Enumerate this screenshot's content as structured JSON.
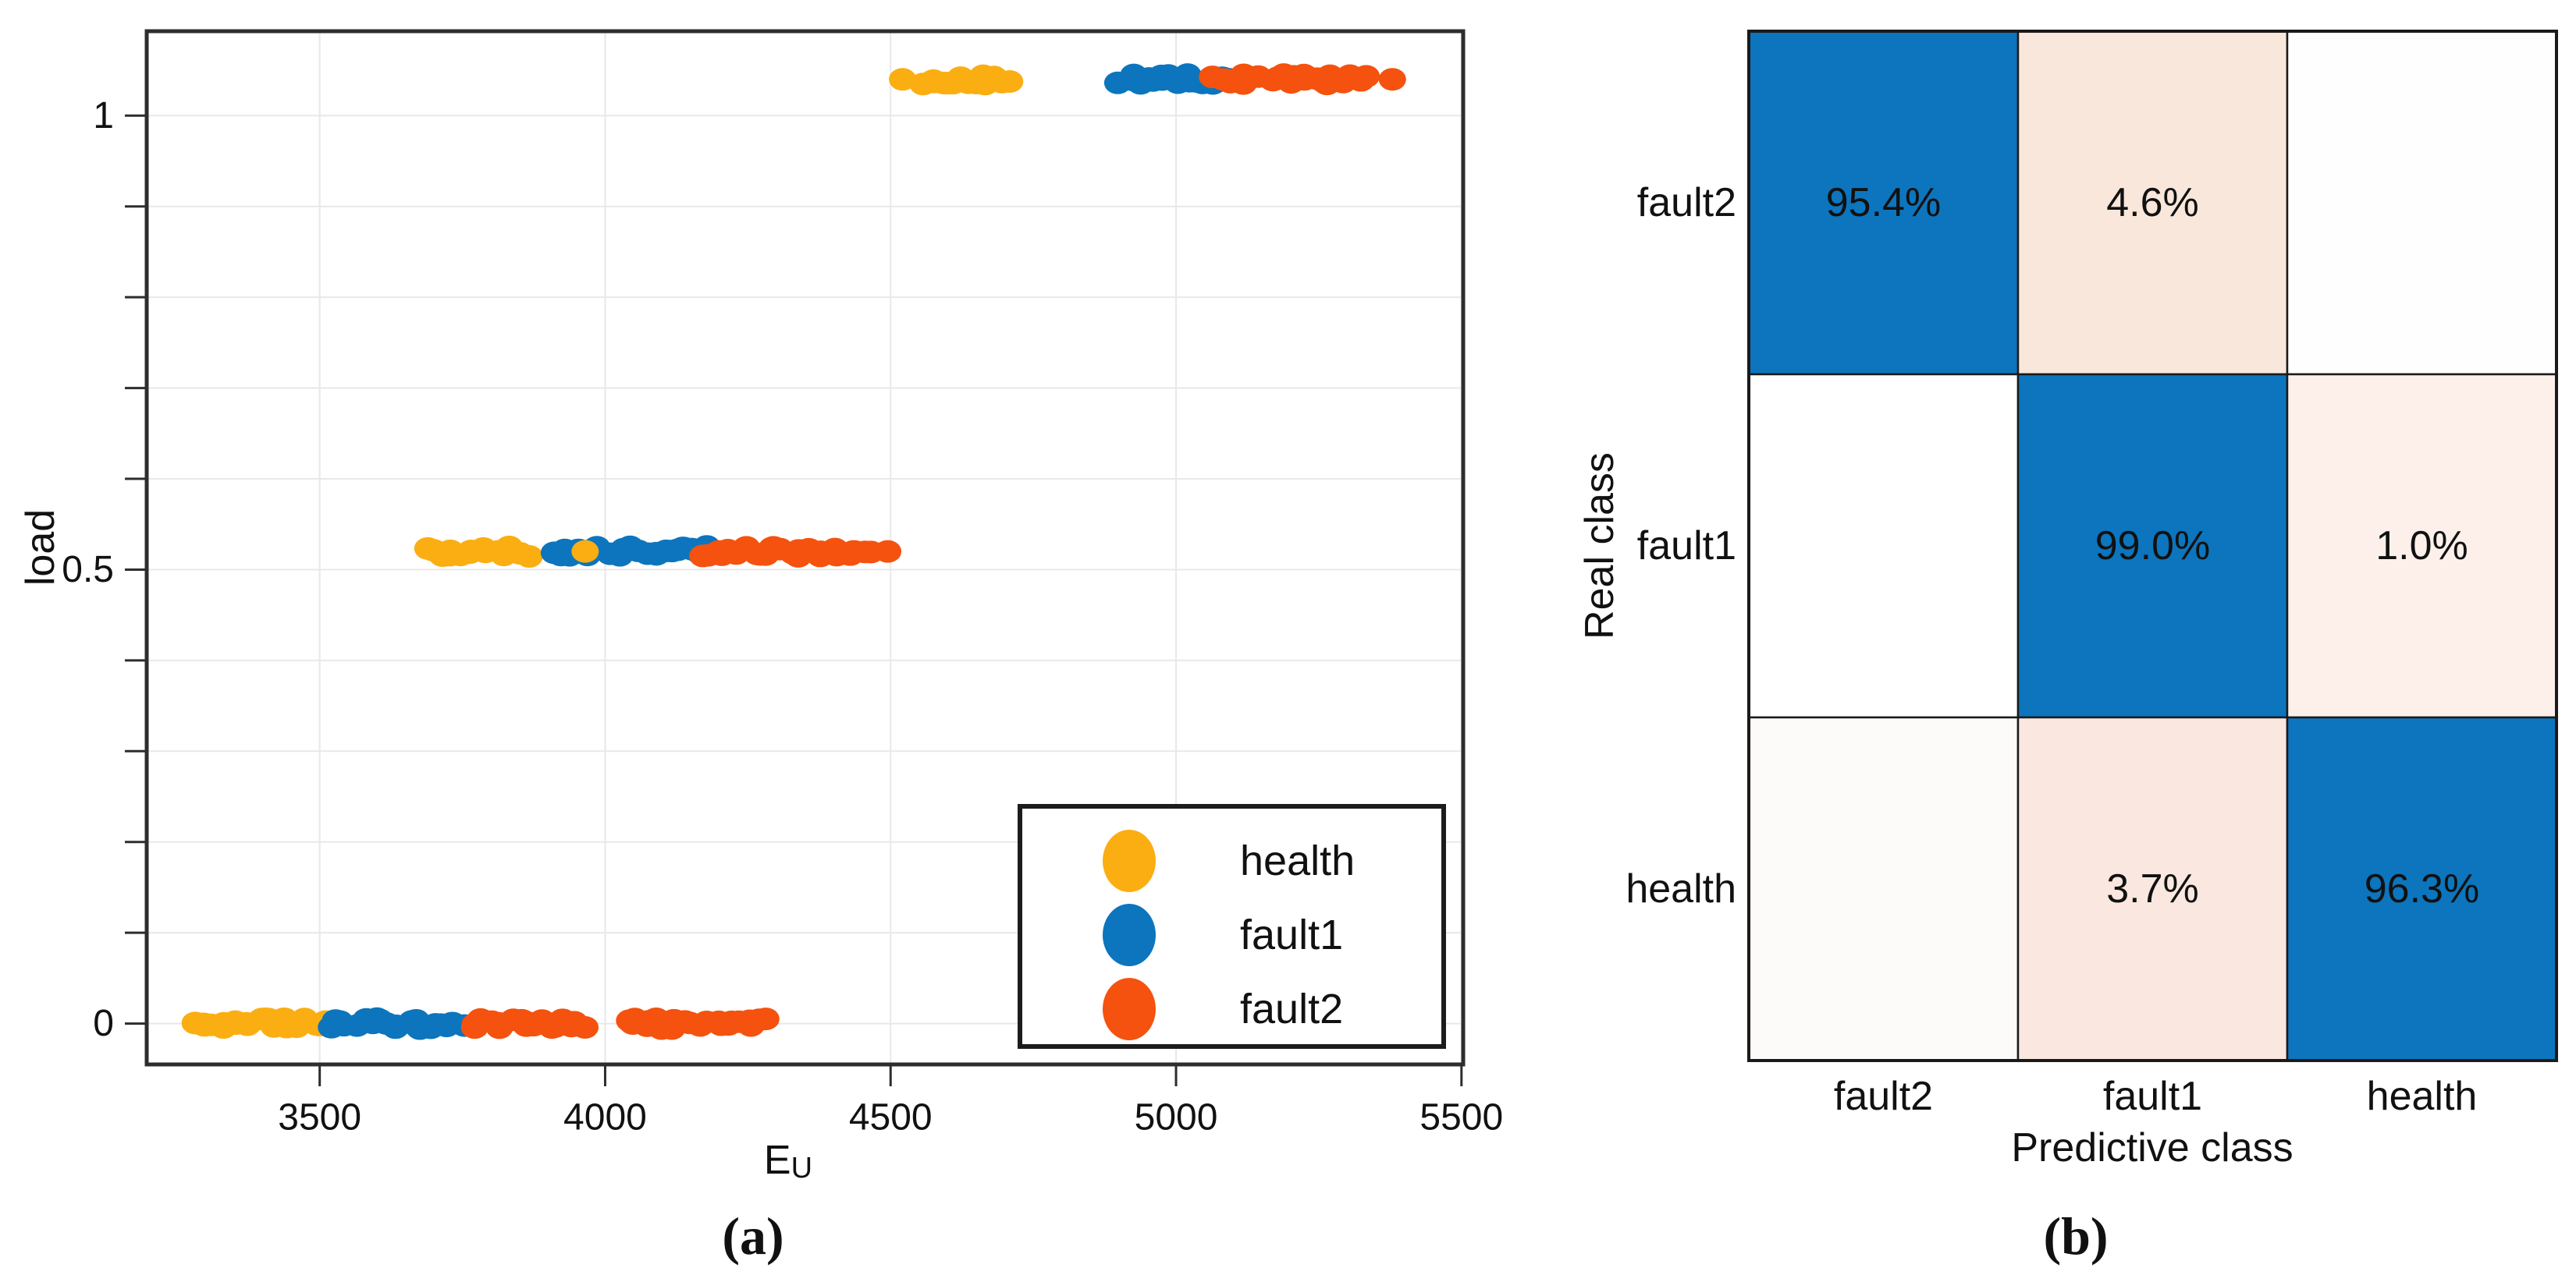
{
  "chart_data": [
    {
      "type": "scatter",
      "panel": "a",
      "caption": "(a)",
      "xlabel": "E",
      "xlabel_subscript": "U",
      "ylabel": "load",
      "x_ticks": [
        3500,
        4000,
        4500,
        5000,
        5500
      ],
      "y_tick_labels": [
        {
          "value": 0,
          "label": "0"
        },
        {
          "value": 0.5,
          "label": "0.5"
        },
        {
          "value": 1,
          "label": "1"
        }
      ],
      "y_minor_tick_step": 0.1,
      "xlim": [
        3197,
        5503
      ],
      "ylim": [
        -0.045,
        1.093
      ],
      "grid": true,
      "load_levels": [
        0,
        0.52,
        1.04
      ],
      "legend_position": "lower-right-inside",
      "legend": [
        {
          "label": "health",
          "color": "#fbae12"
        },
        {
          "label": "fault1",
          "color": "#0c75bd"
        },
        {
          "label": "fault2",
          "color": "#f4520e"
        }
      ],
      "clusters": [
        {
          "class": "health",
          "load": 0,
          "x0": 3280,
          "x1": 3516,
          "n": 22
        },
        {
          "class": "fault1",
          "load": 0,
          "x0": 3516,
          "x1": 3665,
          "n": 14
        },
        {
          "class": "fault1",
          "load": 0,
          "x0": 3672,
          "x1": 3747,
          "n": 8
        },
        {
          "class": "fault2",
          "load": 0,
          "x0": 3762,
          "x1": 3845,
          "n": 8
        },
        {
          "class": "fault2",
          "load": 0,
          "x0": 3858,
          "x1": 3962,
          "n": 10
        },
        {
          "class": "fault2",
          "load": 0,
          "x0": 4035,
          "x1": 4150,
          "n": 11
        },
        {
          "class": "fault2",
          "load": 0,
          "x0": 4168,
          "x1": 4285,
          "n": 11
        },
        {
          "class": "health",
          "load": 0.52,
          "x0": 3688,
          "x1": 3862,
          "n": 16
        },
        {
          "class": "fault1",
          "load": 0.52,
          "x0": 3905,
          "x1": 4185,
          "n": 26
        },
        {
          "class": "health",
          "load": 0.52,
          "x0": 3963,
          "x1": 3967,
          "n": 1
        },
        {
          "class": "fault2",
          "load": 0.52,
          "x0": 4178,
          "x1": 4462,
          "n": 26
        },
        {
          "class": "fault2",
          "load": 0.52,
          "x0": 4493,
          "x1": 4497,
          "n": 1
        },
        {
          "class": "health",
          "load": 1.04,
          "x0": 4519,
          "x1": 4523,
          "n": 1
        },
        {
          "class": "health",
          "load": 1.04,
          "x0": 4556,
          "x1": 4704,
          "n": 14
        },
        {
          "class": "fault1",
          "load": 1.04,
          "x0": 4904,
          "x1": 5096,
          "n": 18
        },
        {
          "class": "fault2",
          "load": 1.04,
          "x0": 5068,
          "x1": 5172,
          "n": 10
        },
        {
          "class": "fault2",
          "load": 1.04,
          "x0": 5186,
          "x1": 5332,
          "n": 14
        },
        {
          "class": "fault2",
          "load": 1.04,
          "x0": 5377,
          "x1": 5381,
          "n": 1
        }
      ],
      "class_colors": {
        "health": "#fbae12",
        "fault1": "#0c75bd",
        "fault2": "#f4520e"
      }
    },
    {
      "type": "heatmap",
      "panel": "b",
      "caption": "(b)",
      "xlabel": "Predictive class",
      "ylabel": "Real class",
      "x_categories": [
        "fault2",
        "fault1",
        "health"
      ],
      "y_categories": [
        "fault2",
        "fault1",
        "health"
      ],
      "values_percent": [
        [
          95.4,
          4.6,
          null
        ],
        [
          null,
          99.0,
          1.0
        ],
        [
          null,
          3.7,
          96.3
        ]
      ],
      "cell_labels": [
        [
          "95.4%",
          "4.6%",
          ""
        ],
        [
          "",
          "99.0%",
          "1.0%"
        ],
        [
          "",
          "3.7%",
          "96.3%"
        ]
      ],
      "cell_colors": [
        [
          "#0c75bd",
          "#f9e7dc",
          "#fefefe"
        ],
        [
          "#ffffff",
          "#0c75bd",
          "#fdf0ea"
        ],
        [
          "#fdfbf9",
          "#fae8e0",
          "#0c75bd"
        ]
      ],
      "cell_text_colors": [
        [
          "#ffffff",
          "#1a1a1a",
          "#1a1a1a"
        ],
        [
          "#1a1a1a",
          "#ffffff",
          "#1a1a1a"
        ],
        [
          "#1a1a1a",
          "#1a1a1a",
          "#ffffff"
        ]
      ],
      "diagonal_color": "#0c75bd",
      "grid_line_color": "#1a1a1a"
    }
  ]
}
